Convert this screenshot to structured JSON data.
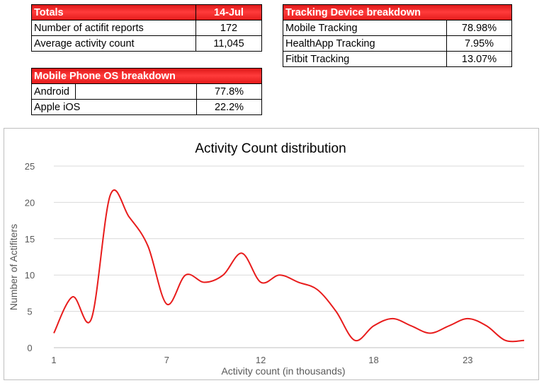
{
  "totals_table": {
    "header_label": "Totals",
    "header_date": "14-Jul",
    "rows": [
      {
        "label": "Number of actifit reports",
        "value": "172"
      },
      {
        "label": "Average activity count",
        "value": "11,045"
      }
    ]
  },
  "device_table": {
    "header_label": "Tracking Device breakdown",
    "rows": [
      {
        "label": "Mobile Tracking",
        "value": "78.98%"
      },
      {
        "label": "HealthApp Tracking",
        "value": "7.95%"
      },
      {
        "label": "Fitbit Tracking",
        "value": "13.07%"
      }
    ]
  },
  "os_table": {
    "header_label": "Mobile Phone OS breakdown",
    "rows": [
      {
        "label": "Android",
        "value": "77.8%"
      },
      {
        "label": "Apple iOS",
        "value": "22.2%"
      }
    ]
  },
  "chart_data": {
    "type": "line",
    "title": "Activity Count distribution",
    "xlabel": "Activity count (in thousands)",
    "ylabel": "Number of Actifiters",
    "x": [
      1,
      2,
      3,
      4,
      5,
      6,
      7,
      8,
      9,
      10,
      11,
      12,
      13,
      14,
      15,
      16,
      17,
      18,
      19,
      20,
      21,
      22,
      23,
      24,
      25,
      26
    ],
    "values": [
      2,
      7,
      4,
      21,
      18,
      14,
      6,
      10,
      9,
      10,
      13,
      9,
      10,
      9,
      8,
      5,
      1,
      3,
      4,
      3,
      2,
      3,
      4,
      3,
      1,
      1
    ],
    "x_ticks": [
      1,
      7,
      12,
      18,
      23
    ],
    "y_ticks": [
      0,
      5,
      10,
      15,
      20,
      25
    ],
    "ylim": [
      0,
      25
    ],
    "xlim": [
      1,
      26
    ],
    "grid": true,
    "line_color": "#e81c1c"
  }
}
